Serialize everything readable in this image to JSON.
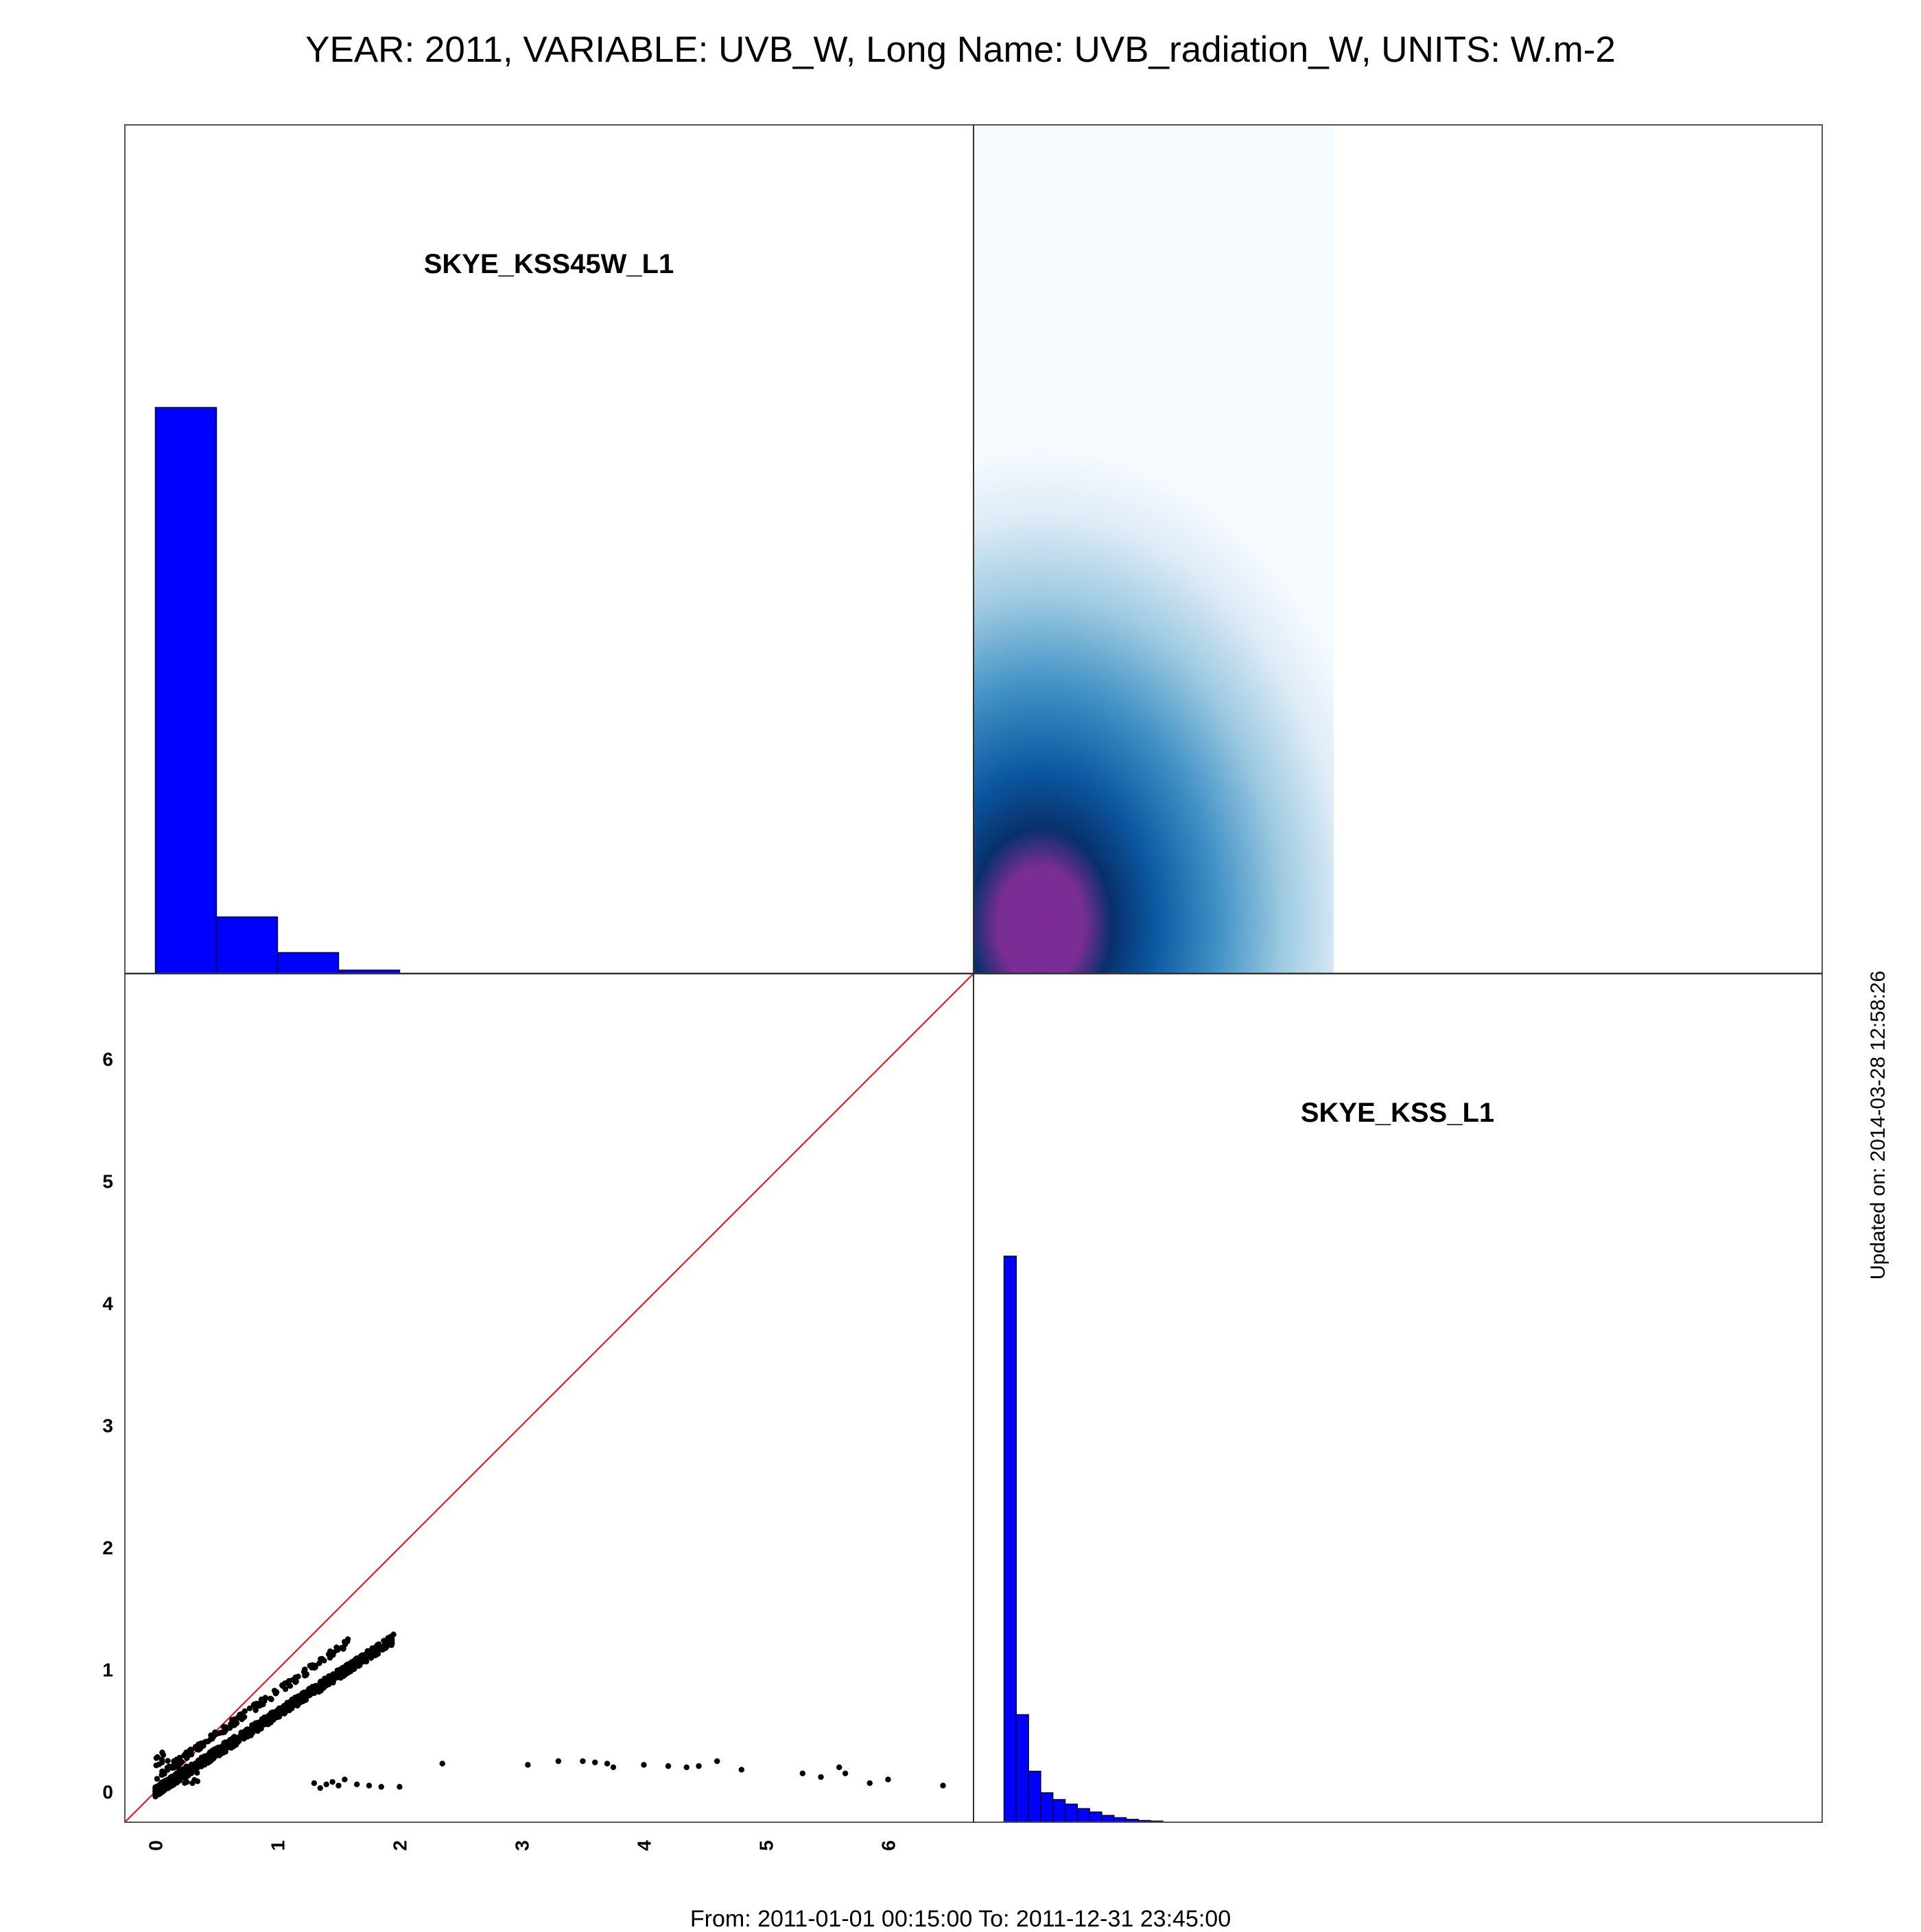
{
  "title": "YEAR: 2011, VARIABLE: UVB_W, Long Name: UVB_radiation_W, UNITS: W.m-2",
  "footer": "From: 2011-01-01 00:15:00 To: 2011-12-31 23:45:00",
  "updated": "Updated on: 2014-03-28 12:58:26",
  "colors": {
    "histogram_fill": "#0000ff",
    "one_to_one_line": "#ff0000",
    "scatter_points": "#000000",
    "density_low": "#f7fbff",
    "density_mid": "#2171b5",
    "density_high": "#08306b",
    "density_peak": "#7b2a96"
  },
  "chart_data": [
    {
      "type": "bar",
      "panel": "top-left",
      "label": "SKYE_KSS45W_L1",
      "bin_edges": [
        0,
        0.5,
        1.0,
        1.5,
        2.0
      ],
      "values": [
        1.0,
        0.1,
        0.037,
        0.006
      ],
      "xlim": [
        -0.25,
        6.7
      ]
    },
    {
      "type": "heatmap",
      "panel": "top-right",
      "description_scale": "2D density of SKYE_KSS45W_L1 vs SKYE_KSS_L1",
      "xlim": [
        -0.25,
        6.7
      ],
      "ylim": [
        -0.25,
        6.7
      ],
      "data_extent_x": [
        -0.25,
        2.7
      ],
      "peak": {
        "x": 0.3,
        "y": 0.15
      }
    },
    {
      "type": "scatter",
      "panel": "bottom-left",
      "xlim": [
        -0.25,
        6.7
      ],
      "ylim": [
        -0.25,
        6.7
      ],
      "x_ticks": [
        "0",
        "1",
        "2",
        "3",
        "4",
        "5",
        "6"
      ],
      "y_ticks": [
        "0",
        "1",
        "2",
        "3",
        "4",
        "5",
        "6"
      ],
      "reference_line": "1:1",
      "main_cluster": {
        "x_range": [
          0,
          1.95
        ],
        "slope": 0.64,
        "intercept": 0.0
      },
      "secondary_cluster": {
        "x_range": [
          0.05,
          1.6
        ],
        "slope": 0.7,
        "intercept": 0.12
      },
      "outliers": [
        [
          1.3,
          0.07
        ],
        [
          1.35,
          0.03
        ],
        [
          1.4,
          0.06
        ],
        [
          1.45,
          0.08
        ],
        [
          1.5,
          0.05
        ],
        [
          1.55,
          0.1
        ],
        [
          1.65,
          0.06
        ],
        [
          1.75,
          0.05
        ],
        [
          1.85,
          0.04
        ],
        [
          2.0,
          0.04
        ],
        [
          2.35,
          0.23
        ],
        [
          3.05,
          0.22
        ],
        [
          3.3,
          0.25
        ],
        [
          3.5,
          0.25
        ],
        [
          3.6,
          0.24
        ],
        [
          3.7,
          0.23
        ],
        [
          3.75,
          0.2
        ],
        [
          4.0,
          0.22
        ],
        [
          4.2,
          0.21
        ],
        [
          4.35,
          0.2
        ],
        [
          4.45,
          0.21
        ],
        [
          4.6,
          0.25
        ],
        [
          4.8,
          0.18
        ],
        [
          5.3,
          0.15
        ],
        [
          5.45,
          0.12
        ],
        [
          5.6,
          0.2
        ],
        [
          5.65,
          0.15
        ],
        [
          5.85,
          0.07
        ],
        [
          6.0,
          0.1
        ],
        [
          6.45,
          0.05
        ]
      ]
    },
    {
      "type": "bar",
      "panel": "bottom-right",
      "label": "SKYE_KSS_L1",
      "bin_edges": [
        0,
        0.1,
        0.2,
        0.3,
        0.4,
        0.5,
        0.6,
        0.7,
        0.8,
        0.9,
        1.0,
        1.1,
        1.2,
        1.3
      ],
      "values": [
        1.0,
        0.19,
        0.09,
        0.052,
        0.04,
        0.032,
        0.024,
        0.018,
        0.012,
        0.008,
        0.005,
        0.003,
        0.002
      ],
      "xlim": [
        -0.25,
        6.7
      ]
    }
  ]
}
